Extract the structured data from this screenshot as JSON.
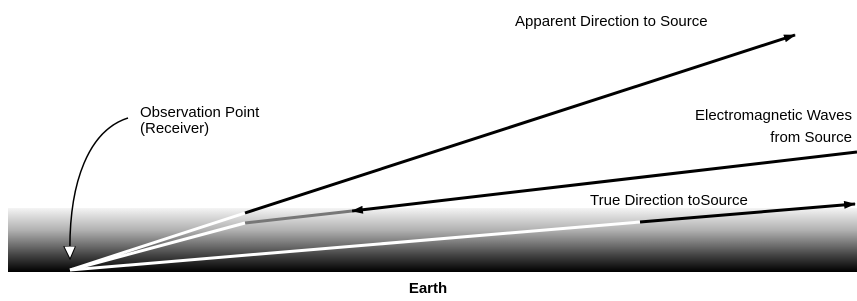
{
  "labels": {
    "apparent": "Apparent Direction to Source",
    "waves_line1": "Electromagnetic Waves",
    "waves_line2": "from Source",
    "observation_line1": "Observation Point",
    "observation_line2": "(Receiver)",
    "true_direction": "True Direction toSource",
    "earth": "Earth"
  }
}
